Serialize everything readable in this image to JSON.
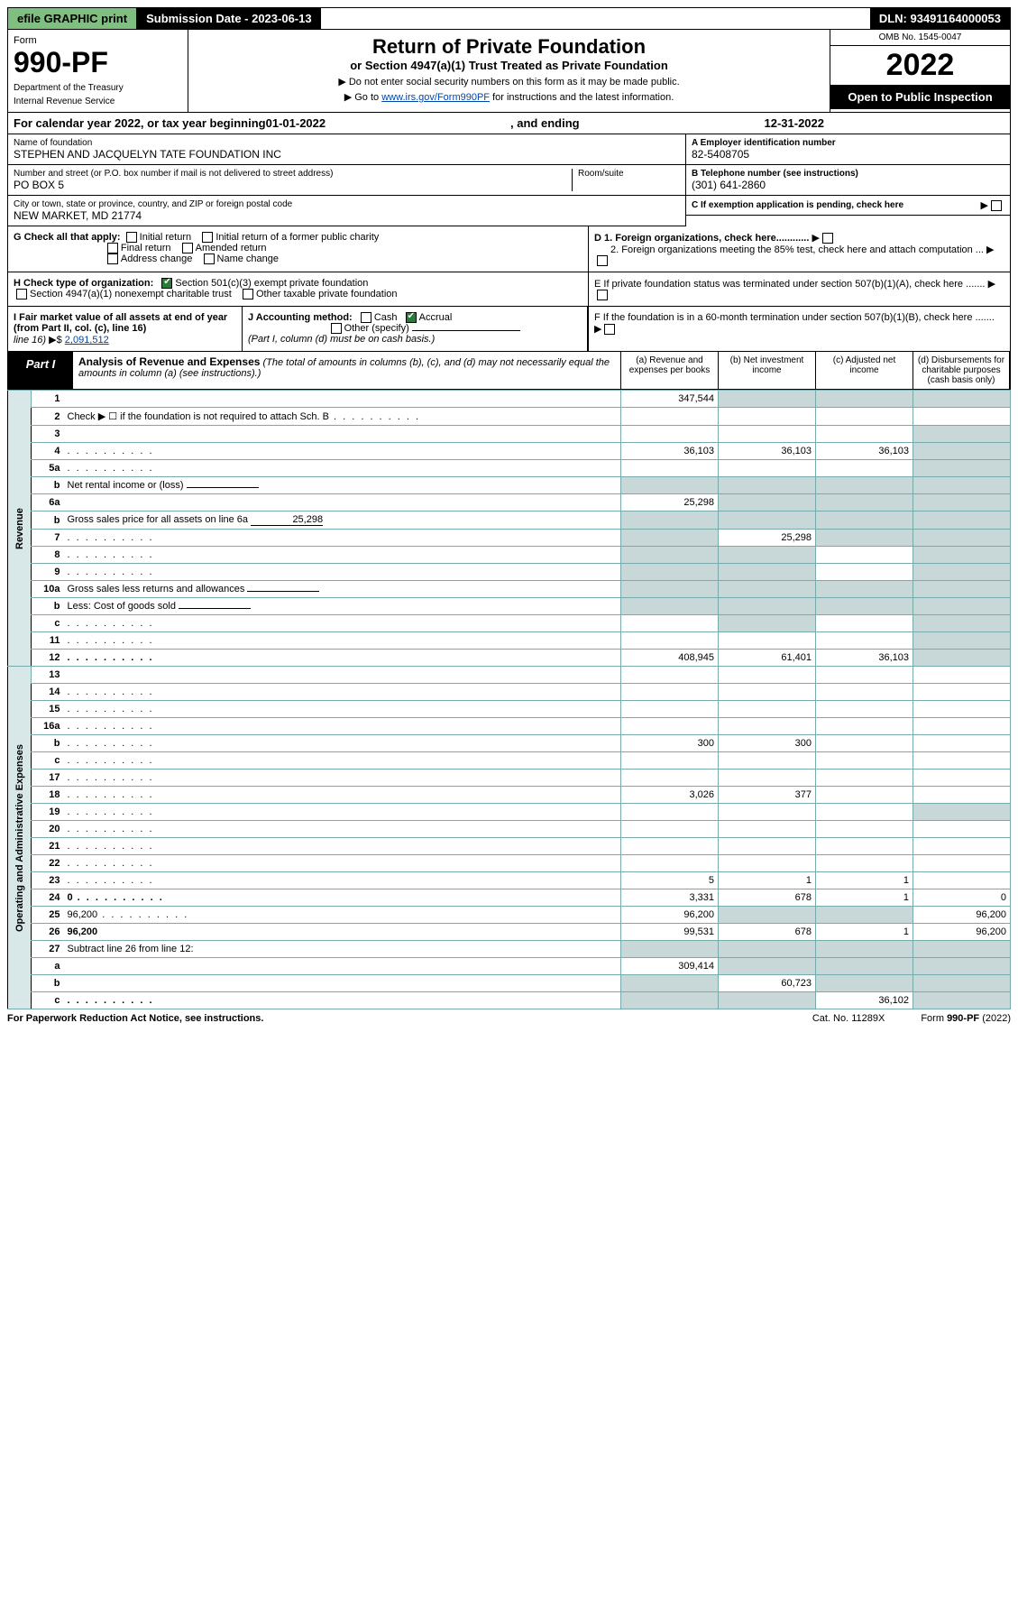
{
  "topbar": {
    "efile": "efile GRAPHIC print",
    "subdate_label": "Submission Date - 2023-06-13",
    "dln": "DLN: 93491164000053"
  },
  "header": {
    "form_word": "Form",
    "form_number": "990-PF",
    "dept": "Department of the Treasury",
    "irs": "Internal Revenue Service",
    "title": "Return of Private Foundation",
    "subtitle": "or Section 4947(a)(1) Trust Treated as Private Foundation",
    "note1": "▶ Do not enter social security numbers on this form as it may be made public.",
    "note2_pre": "▶ Go to ",
    "note2_link": "www.irs.gov/Form990PF",
    "note2_post": " for instructions and the latest information.",
    "omb": "OMB No. 1545-0047",
    "year": "2022",
    "open": "Open to Public Inspection"
  },
  "calrow": {
    "pre": "For calendar year 2022, or tax year beginning ",
    "begin": "01-01-2022",
    "mid": ", and ending ",
    "end": "12-31-2022"
  },
  "id": {
    "name_lbl": "Name of foundation",
    "name": "STEPHEN AND JACQUELYN TATE FOUNDATION INC",
    "addr_lbl": "Number and street (or P.O. box number if mail is not delivered to street address)",
    "addr": "PO BOX 5",
    "room_lbl": "Room/suite",
    "city_lbl": "City or town, state or province, country, and ZIP or foreign postal code",
    "city": "NEW MARKET, MD  21774",
    "a_lbl": "A Employer identification number",
    "ein": "82-5408705",
    "b_lbl": "B Telephone number (see instructions)",
    "phone": "(301) 641-2860",
    "c_lbl": "C If exemption application is pending, check here"
  },
  "checks": {
    "g_lbl": "G Check all that apply:",
    "g_items": [
      "Initial return",
      "Initial return of a former public charity",
      "Final return",
      "Amended return",
      "Address change",
      "Name change"
    ],
    "h_lbl": "H Check type of organization:",
    "h1": "Section 501(c)(3) exempt private foundation",
    "h2": "Section 4947(a)(1) nonexempt charitable trust",
    "h3": "Other taxable private foundation",
    "i_lbl": "I Fair market value of all assets at end of year (from Part II, col. (c), line 16)",
    "i_val": "2,091,512",
    "j_lbl": "J Accounting method:",
    "j_cash": "Cash",
    "j_accr": "Accrual",
    "j_other": "Other (specify)",
    "j_note": "(Part I, column (d) must be on cash basis.)",
    "d1": "D 1. Foreign organizations, check here............",
    "d2": "2. Foreign organizations meeting the 85% test, check here and attach computation ...",
    "e": "E  If private foundation status was terminated under section 507(b)(1)(A), check here .......",
    "f": "F  If the foundation is in a 60-month termination under section 507(b)(1)(B), check here ......."
  },
  "part1": {
    "tag": "Part I",
    "title": "Analysis of Revenue and Expenses",
    "title_note": " (The total of amounts in columns (b), (c), and (d) may not necessarily equal the amounts in column (a) (see instructions).)",
    "col_a": "(a)  Revenue and expenses per books",
    "col_b": "(b)  Net investment income",
    "col_c": "(c)  Adjusted net income",
    "col_d": "(d)  Disbursements for charitable purposes (cash basis only)",
    "side_rev": "Revenue",
    "side_exp": "Operating and Administrative Expenses",
    "rows": [
      {
        "n": "1",
        "d": "",
        "a": "347,544",
        "b": "",
        "c": "",
        "shade": [
          "b",
          "c",
          "d"
        ]
      },
      {
        "n": "2",
        "d": "Check ▶ ☐ if the foundation is not required to attach Sch. B",
        "dots": true,
        "cols0": true
      },
      {
        "n": "3",
        "d": "",
        "a": "",
        "b": "",
        "c": "",
        "shade": [
          "d"
        ]
      },
      {
        "n": "4",
        "d": "",
        "dots": true,
        "a": "36,103",
        "b": "36,103",
        "c": "36,103",
        "shade": [
          "d"
        ]
      },
      {
        "n": "5a",
        "d": "",
        "dots": true,
        "a": "",
        "b": "",
        "c": "",
        "shade": [
          "d"
        ]
      },
      {
        "n": "b",
        "d": "Net rental income or (loss)",
        "inline": "",
        "cols0": true,
        "shade": [
          "a",
          "b",
          "c",
          "d"
        ]
      },
      {
        "n": "6a",
        "d": "",
        "a": "25,298",
        "b": "",
        "c": "",
        "shade": [
          "b",
          "c",
          "d"
        ]
      },
      {
        "n": "b",
        "d": "Gross sales price for all assets on line 6a",
        "inline": "25,298",
        "cols0": true,
        "shade": [
          "a",
          "b",
          "c",
          "d"
        ]
      },
      {
        "n": "7",
        "d": "",
        "dots": true,
        "a": "",
        "b": "25,298",
        "c": "",
        "shade": [
          "a",
          "c",
          "d"
        ]
      },
      {
        "n": "8",
        "d": "",
        "dots": true,
        "a": "",
        "b": "",
        "c": "",
        "shade": [
          "a",
          "b",
          "d"
        ]
      },
      {
        "n": "9",
        "d": "",
        "dots": true,
        "a": "",
        "b": "",
        "c": "",
        "shade": [
          "a",
          "b",
          "d"
        ]
      },
      {
        "n": "10a",
        "d": "Gross sales less returns and allowances",
        "inline": "",
        "cols0": true,
        "shade": [
          "a",
          "b",
          "c",
          "d"
        ]
      },
      {
        "n": "b",
        "d": "Less: Cost of goods sold",
        "dots": true,
        "inline": "",
        "cols0": true,
        "shade": [
          "a",
          "b",
          "c",
          "d"
        ]
      },
      {
        "n": "c",
        "d": "",
        "dots": true,
        "a": "",
        "b": "",
        "c": "",
        "shade": [
          "b",
          "d"
        ]
      },
      {
        "n": "11",
        "d": "",
        "dots": true,
        "a": "",
        "b": "",
        "c": "",
        "shade": [
          "d"
        ]
      },
      {
        "n": "12",
        "d": "",
        "dots": true,
        "bold": true,
        "a": "408,945",
        "b": "61,401",
        "c": "36,103",
        "shade": [
          "d"
        ]
      },
      {
        "n": "13",
        "d": "",
        "a": "",
        "b": "",
        "c": ""
      },
      {
        "n": "14",
        "d": "",
        "dots": true,
        "a": "",
        "b": "",
        "c": ""
      },
      {
        "n": "15",
        "d": "",
        "dots": true,
        "a": "",
        "b": "",
        "c": ""
      },
      {
        "n": "16a",
        "d": "",
        "dots": true,
        "a": "",
        "b": "",
        "c": ""
      },
      {
        "n": "b",
        "d": "",
        "dots": true,
        "a": "300",
        "b": "300",
        "c": ""
      },
      {
        "n": "c",
        "d": "",
        "dots": true,
        "a": "",
        "b": "",
        "c": ""
      },
      {
        "n": "17",
        "d": "",
        "dots": true,
        "a": "",
        "b": "",
        "c": ""
      },
      {
        "n": "18",
        "d": "",
        "dots": true,
        "a": "3,026",
        "b": "377",
        "c": ""
      },
      {
        "n": "19",
        "d": "",
        "dots": true,
        "a": "",
        "b": "",
        "c": "",
        "shade": [
          "d"
        ]
      },
      {
        "n": "20",
        "d": "",
        "dots": true,
        "a": "",
        "b": "",
        "c": ""
      },
      {
        "n": "21",
        "d": "",
        "dots": true,
        "a": "",
        "b": "",
        "c": ""
      },
      {
        "n": "22",
        "d": "",
        "dots": true,
        "a": "",
        "b": "",
        "c": ""
      },
      {
        "n": "23",
        "d": "",
        "dots": true,
        "a": "5",
        "b": "1",
        "c": "1"
      },
      {
        "n": "24",
        "d": "0",
        "dots": true,
        "bold": true,
        "a": "3,331",
        "b": "678",
        "c": "1"
      },
      {
        "n": "25",
        "d": "96,200",
        "dots": true,
        "a": "96,200",
        "b": "",
        "c": "",
        "shade": [
          "b",
          "c"
        ]
      },
      {
        "n": "26",
        "d": "96,200",
        "bold": true,
        "a": "99,531",
        "b": "678",
        "c": "1"
      },
      {
        "n": "27",
        "d": "Subtract line 26 from line 12:",
        "cols0": true,
        "shade": [
          "a",
          "b",
          "c",
          "d"
        ]
      },
      {
        "n": "a",
        "d": "",
        "bold": true,
        "a": "309,414",
        "b": "",
        "c": "",
        "shade": [
          "b",
          "c",
          "d"
        ]
      },
      {
        "n": "b",
        "d": "",
        "bold": true,
        "a": "",
        "b": "60,723",
        "c": "",
        "shade": [
          "a",
          "c",
          "d"
        ]
      },
      {
        "n": "c",
        "d": "",
        "dots": true,
        "bold": true,
        "a": "",
        "b": "",
        "c": "36,102",
        "shade": [
          "a",
          "b",
          "d"
        ]
      }
    ]
  },
  "footer": {
    "left": "For Paperwork Reduction Act Notice, see instructions.",
    "mid": "Cat. No. 11289X",
    "right": "Form 990-PF (2022)"
  }
}
